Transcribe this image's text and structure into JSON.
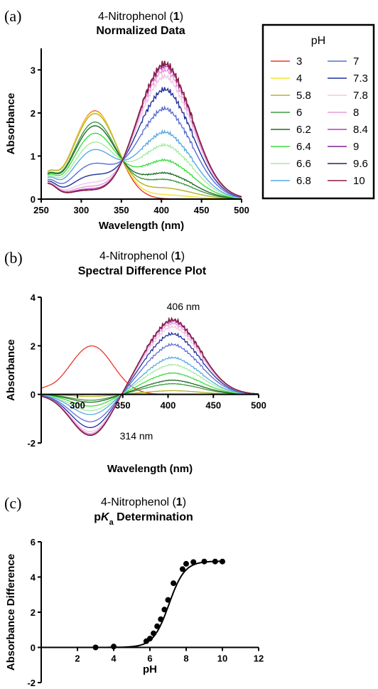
{
  "panels": {
    "a": {
      "letter": "(a)",
      "title_compound": "4-Nitrophenol (",
      "title_num": "1",
      "title_close": ")",
      "subtitle": "Normalized Data"
    },
    "b": {
      "letter": "(b)",
      "title_compound": "4-Nitrophenol (",
      "title_num": "1",
      "title_close": ")",
      "subtitle": "Spectral Difference Plot",
      "annot_peak": "406 nm",
      "annot_trough": "314 nm"
    },
    "c": {
      "letter": "(c)",
      "title_compound": "4-Nitrophenol (",
      "title_num": "1",
      "title_close": ")",
      "subtitle_p": "p",
      "subtitle_K": "K",
      "subtitle_a": "a",
      "subtitle_rest": " Determination"
    }
  },
  "legend": {
    "title": "pH",
    "placement": "right",
    "entries": [
      {
        "label": "3",
        "color": "#e8382c"
      },
      {
        "label": "4",
        "color": "#f4e22a"
      },
      {
        "label": "5.8",
        "color": "#b5b12a"
      },
      {
        "label": "6",
        "color": "#3e9a3e"
      },
      {
        "label": "6.2",
        "color": "#1f6b2a"
      },
      {
        "label": "6.4",
        "color": "#3fdb3f"
      },
      {
        "label": "6.6",
        "color": "#a7eca0"
      },
      {
        "label": "6.8",
        "color": "#57a9e6"
      },
      {
        "label": "7",
        "color": "#5a6fd6"
      },
      {
        "label": "7.3",
        "color": "#1f2f9e"
      },
      {
        "label": "7.8",
        "color": "#f2c6e6"
      },
      {
        "label": "8",
        "color": "#e69bd6"
      },
      {
        "label": "8.4",
        "color": "#b23fb2"
      },
      {
        "label": "9",
        "color": "#7e2490"
      },
      {
        "label": "9.6",
        "color": "#3a1a5e"
      },
      {
        "label": "10",
        "color": "#8a1f3a"
      }
    ]
  },
  "chart_data": [
    {
      "type": "line",
      "title": "4-Nitrophenol (1) Normalized Data",
      "xlabel": "Wavelength (nm)",
      "ylabel": "Absorbance",
      "xlim": [
        250,
        500
      ],
      "ylim": [
        0,
        3.5
      ],
      "xticks": [
        "250",
        "300",
        "350",
        "400",
        "450",
        "500"
      ],
      "yticks": [
        "0",
        "1",
        "2",
        "3"
      ],
      "series_note": "one curve per pH in legend",
      "acid_peak": {
        "x": 317,
        "y": 2.05
      },
      "base_peak": {
        "x": 405,
        "y": 3.15
      },
      "isosbestic": {
        "x": 348,
        "y": 1.12
      },
      "series": [
        {
          "name": "3",
          "peak_414": 0.0
        },
        {
          "name": "4",
          "peak_414": 0.02
        },
        {
          "name": "5.8",
          "peak_414": 0.1
        },
        {
          "name": "6",
          "peak_414": 0.45
        },
        {
          "name": "6.2",
          "peak_414": 0.6
        },
        {
          "name": "6.4",
          "peak_414": 0.9
        },
        {
          "name": "6.6",
          "peak_414": 1.25
        },
        {
          "name": "6.8",
          "peak_414": 1.55
        },
        {
          "name": "7",
          "peak_414": 2.1
        },
        {
          "name": "7.3",
          "peak_414": 2.55
        },
        {
          "name": "7.8",
          "peak_414": 2.85
        },
        {
          "name": "8",
          "peak_414": 3.0
        },
        {
          "name": "8.4",
          "peak_414": 3.1
        },
        {
          "name": "9",
          "peak_414": 3.15
        },
        {
          "name": "9.6",
          "peak_414": 3.15
        },
        {
          "name": "10",
          "peak_414": 3.15
        }
      ]
    },
    {
      "type": "line",
      "title": "4-Nitrophenol (1) Spectral Difference Plot",
      "xlabel": "Wavelength (nm)",
      "ylabel": "Absorbance",
      "xlim": [
        260,
        500
      ],
      "ylim": [
        -2,
        4
      ],
      "xticks": [
        "300",
        "350",
        "400",
        "450",
        "500"
      ],
      "yticks": [
        "-2",
        "0",
        "2",
        "4"
      ],
      "annotations": [
        "406 nm",
        "314 nm"
      ]
    },
    {
      "type": "scatter",
      "title": "4-Nitrophenol (1) pKa Determination",
      "xlabel": "pH",
      "ylabel": "Absorbance Difference",
      "xlim": [
        0,
        12
      ],
      "ylim": [
        -2,
        6
      ],
      "xticks": [
        "2",
        "4",
        "6",
        "8",
        "10",
        "12"
      ],
      "yticks": [
        "-2",
        "0",
        "2",
        "4",
        "6"
      ],
      "x": [
        3,
        4,
        5.8,
        6,
        6.2,
        6.4,
        6.6,
        6.8,
        7,
        7.3,
        7.8,
        8,
        8.4,
        9,
        9.6,
        10
      ],
      "y": [
        0.0,
        0.05,
        0.35,
        0.5,
        0.8,
        1.2,
        1.6,
        2.15,
        2.7,
        3.65,
        4.45,
        4.75,
        4.85,
        4.88,
        4.88,
        4.88
      ],
      "fit": {
        "pKa": 7.05,
        "top": 4.9,
        "bottom": 0.0
      }
    }
  ]
}
